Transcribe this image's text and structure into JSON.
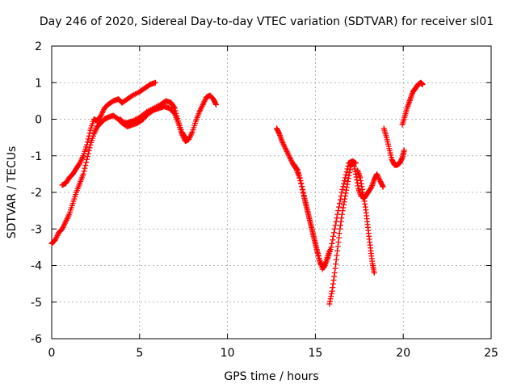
{
  "chart_data": {
    "type": "scatter",
    "title": "Day 246 of 2020, Sidereal Day-to-day VTEC variation (SDTVAR) for receiver sl01",
    "xlabel": "GPS time / hours",
    "ylabel": "SDTVAR / TECUs",
    "xlim": [
      0,
      25
    ],
    "ylim": [
      -6,
      2
    ],
    "xticks": [
      "0",
      "5",
      "10",
      "15",
      "20",
      "25"
    ],
    "yticks": [
      "-6",
      "-5",
      "-4",
      "-3",
      "-2",
      "-1",
      "0",
      "1",
      "2"
    ],
    "grid": true,
    "marker": "plus",
    "color": "#ff0000",
    "series": [
      {
        "points": [
          [
            0.0,
            -3.4
          ],
          [
            0.2,
            -3.3
          ],
          [
            0.4,
            -3.1
          ],
          [
            0.6,
            -3.0
          ],
          [
            0.8,
            -2.8
          ],
          [
            1.0,
            -2.6
          ],
          [
            1.2,
            -2.3
          ],
          [
            1.4,
            -2.0
          ],
          [
            1.6,
            -1.75
          ],
          [
            1.8,
            -1.5
          ],
          [
            2.0,
            -1.1
          ],
          [
            2.2,
            -0.7
          ],
          [
            2.4,
            -0.4
          ],
          [
            2.6,
            -0.2
          ],
          [
            2.8,
            -0.1
          ],
          [
            3.0,
            0.0
          ],
          [
            3.2,
            0.05
          ],
          [
            3.5,
            0.1
          ],
          [
            3.8,
            0.0
          ],
          [
            4.0,
            -0.1
          ],
          [
            4.3,
            -0.2
          ],
          [
            4.6,
            -0.15
          ],
          [
            4.9,
            -0.1
          ],
          [
            5.2,
            0.0
          ],
          [
            5.5,
            0.15
          ],
          [
            5.8,
            0.25
          ],
          [
            6.1,
            0.3
          ],
          [
            6.4,
            0.35
          ],
          [
            6.7,
            0.3
          ],
          [
            7.0,
            0.15
          ],
          [
            7.2,
            -0.1
          ],
          [
            7.4,
            -0.4
          ],
          [
            7.6,
            -0.6
          ],
          [
            7.8,
            -0.55
          ],
          [
            8.0,
            -0.35
          ],
          [
            8.2,
            -0.05
          ],
          [
            8.4,
            0.2
          ],
          [
            8.6,
            0.4
          ],
          [
            8.8,
            0.6
          ],
          [
            9.0,
            0.65
          ],
          [
            9.2,
            0.55
          ],
          [
            9.35,
            0.4
          ]
        ]
      },
      {
        "points": [
          [
            0.6,
            -1.8
          ],
          [
            0.8,
            -1.75
          ],
          [
            1.0,
            -1.6
          ],
          [
            1.2,
            -1.5
          ],
          [
            1.4,
            -1.35
          ],
          [
            1.6,
            -1.2
          ],
          [
            1.8,
            -1.0
          ],
          [
            2.0,
            -0.7
          ],
          [
            2.2,
            -0.3
          ],
          [
            2.4,
            0.0
          ],
          [
            2.6,
            -0.05
          ],
          [
            2.8,
            0.1
          ],
          [
            3.0,
            0.3
          ],
          [
            3.2,
            0.4
          ],
          [
            3.5,
            0.5
          ],
          [
            3.8,
            0.55
          ],
          [
            4.0,
            0.45
          ],
          [
            4.3,
            0.55
          ],
          [
            4.6,
            0.65
          ],
          [
            5.0,
            0.75
          ],
          [
            5.3,
            0.85
          ],
          [
            5.6,
            0.95
          ],
          [
            5.9,
            1.0
          ]
        ]
      },
      {
        "points": [
          [
            3.9,
            0.0
          ],
          [
            4.1,
            -0.1
          ],
          [
            4.3,
            -0.1
          ],
          [
            4.6,
            -0.05
          ],
          [
            5.0,
            0.05
          ],
          [
            5.4,
            0.2
          ],
          [
            5.8,
            0.3
          ],
          [
            6.2,
            0.4
          ],
          [
            6.5,
            0.5
          ],
          [
            6.8,
            0.45
          ],
          [
            7.0,
            0.3
          ],
          [
            7.2,
            -0.05
          ],
          [
            7.4,
            -0.35
          ],
          [
            7.6,
            -0.5
          ]
        ]
      },
      {
        "points": [
          [
            12.8,
            -0.25
          ],
          [
            12.95,
            -0.4
          ],
          [
            13.1,
            -0.6
          ],
          [
            13.3,
            -0.8
          ],
          [
            13.5,
            -1.0
          ],
          [
            13.7,
            -1.2
          ],
          [
            13.9,
            -1.35
          ],
          [
            14.1,
            -1.6
          ],
          [
            14.3,
            -2.0
          ],
          [
            14.5,
            -2.4
          ],
          [
            14.7,
            -2.8
          ],
          [
            14.9,
            -3.2
          ],
          [
            15.1,
            -3.6
          ],
          [
            15.3,
            -3.95
          ],
          [
            15.5,
            -4.05
          ],
          [
            15.7,
            -3.8
          ],
          [
            15.9,
            -3.5
          ],
          [
            16.1,
            -3.0
          ],
          [
            16.3,
            -2.5
          ],
          [
            16.5,
            -2.0
          ],
          [
            16.7,
            -1.6
          ],
          [
            16.9,
            -1.2
          ],
          [
            17.1,
            -1.15
          ],
          [
            17.3,
            -1.2
          ]
        ]
      },
      {
        "points": [
          [
            13.8,
            -1.25
          ],
          [
            14.0,
            -1.4
          ],
          [
            14.2,
            -1.75
          ],
          [
            14.4,
            -2.2
          ],
          [
            14.6,
            -2.6
          ],
          [
            14.8,
            -3.0
          ],
          [
            15.0,
            -3.4
          ],
          [
            15.2,
            -3.8
          ],
          [
            15.4,
            -4.1
          ],
          [
            15.6,
            -3.9
          ],
          [
            15.8,
            -3.6
          ]
        ]
      },
      {
        "points": [
          [
            15.8,
            -5.05
          ],
          [
            15.95,
            -4.7
          ],
          [
            16.1,
            -4.2
          ],
          [
            16.25,
            -3.6
          ],
          [
            16.4,
            -3.0
          ],
          [
            16.55,
            -2.5
          ],
          [
            16.7,
            -2.1
          ],
          [
            16.85,
            -1.7
          ],
          [
            17.0,
            -1.3
          ],
          [
            17.15,
            -1.15
          ],
          [
            17.3,
            -1.5
          ],
          [
            17.45,
            -1.9
          ],
          [
            17.6,
            -2.1
          ],
          [
            17.8,
            -2.15
          ],
          [
            18.0,
            -2.0
          ],
          [
            18.2,
            -1.85
          ],
          [
            18.35,
            -1.65
          ],
          [
            18.5,
            -1.5
          ],
          [
            18.7,
            -1.7
          ],
          [
            18.85,
            -1.85
          ]
        ]
      },
      {
        "points": [
          [
            17.4,
            -1.4
          ],
          [
            17.55,
            -1.6
          ],
          [
            17.7,
            -2.0
          ],
          [
            17.85,
            -2.4
          ],
          [
            17.95,
            -2.8
          ],
          [
            18.05,
            -3.2
          ],
          [
            18.15,
            -3.6
          ],
          [
            18.25,
            -3.95
          ],
          [
            18.35,
            -4.2
          ]
        ]
      },
      {
        "points": [
          [
            18.9,
            -0.25
          ],
          [
            19.05,
            -0.5
          ],
          [
            19.2,
            -0.8
          ],
          [
            19.35,
            -1.1
          ],
          [
            19.5,
            -1.25
          ],
          [
            19.65,
            -1.25
          ],
          [
            19.8,
            -1.2
          ],
          [
            19.95,
            -1.05
          ],
          [
            20.05,
            -0.85
          ]
        ]
      },
      {
        "points": [
          [
            19.95,
            -0.15
          ],
          [
            20.1,
            0.1
          ],
          [
            20.25,
            0.35
          ],
          [
            20.4,
            0.55
          ],
          [
            20.55,
            0.75
          ],
          [
            20.7,
            0.85
          ],
          [
            20.85,
            0.95
          ],
          [
            21.0,
            1.0
          ],
          [
            21.1,
            0.95
          ]
        ]
      }
    ]
  }
}
